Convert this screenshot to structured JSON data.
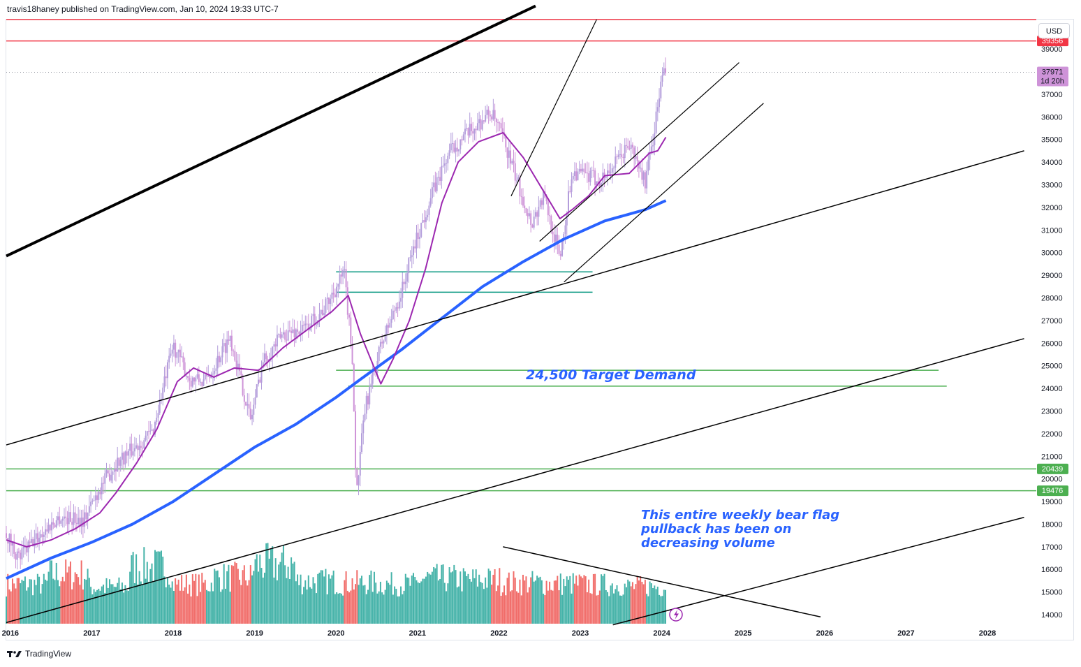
{
  "header": {
    "author_line": "travis18haney published on TradingView.com, Jan 10, 2024 19:33 UTC-7"
  },
  "footer": {
    "brand": "TradingView",
    "logo_icon": "tradingview-logo-icon"
  },
  "price_scale": {
    "currency": "USD",
    "ticks": [
      39000,
      37000,
      36000,
      35000,
      34000,
      33000,
      32000,
      31000,
      30000,
      29000,
      28000,
      27000,
      26000,
      25000,
      24000,
      23000,
      22000,
      21000,
      20000,
      19000,
      18000,
      17000,
      16000,
      15000,
      14000
    ],
    "ylim": [
      13600,
      40300
    ],
    "price_labels": [
      {
        "text": "39356",
        "value": 39356,
        "color": "#f23645"
      },
      {
        "text": "37971",
        "sub": "1d 20h",
        "value": 37971,
        "color": "#ce93d8"
      },
      {
        "text": "20439",
        "value": 20439,
        "color": "#4caf50"
      },
      {
        "text": "19476",
        "value": 19476,
        "color": "#4caf50"
      }
    ]
  },
  "time_scale": {
    "xlim": [
      2015.95,
      2028.6
    ],
    "years": [
      "2016",
      "2017",
      "2018",
      "2019",
      "2020",
      "2021",
      "2022",
      "2023",
      "2024",
      "2025",
      "2026",
      "2027",
      "2028"
    ]
  },
  "annotations": {
    "target": "24,500 Target Demand",
    "volume_note": [
      "This entire weekly bear flag",
      "pullback has been on",
      "decreasing volume"
    ]
  },
  "colors": {
    "up": "#26a69a",
    "down": "#ef5350",
    "ma_fast": "#9c27b0",
    "ma_slow": "#2962ff",
    "resistance": "#f23645",
    "support": "#4caf50",
    "zone": "#089981",
    "trendline": "#000000",
    "annotation": "#2962ff"
  },
  "chart_data": {
    "type": "candlestick",
    "title": "",
    "horizontal_levels": [
      {
        "value": 40300,
        "color": "#f23645"
      },
      {
        "value": 39356,
        "color": "#f23645"
      },
      {
        "value": 20439,
        "color": "#4caf50"
      },
      {
        "value": 19476,
        "color": "#4caf50"
      },
      {
        "value": 24800,
        "color": "#4caf50",
        "from": 2020.0,
        "to": 2027.4
      },
      {
        "value": 24100,
        "color": "#4caf50",
        "from": 2020.15,
        "to": 2027.5
      },
      {
        "value": 29150,
        "color": "#089981",
        "from": 2020.0,
        "to": 2023.15
      },
      {
        "value": 28250,
        "color": "#089981",
        "from": 2020.0,
        "to": 2023.15
      }
    ],
    "trendlines": [
      {
        "from": [
          2015.95,
          29850
        ],
        "to": [
          2022.45,
          40900
        ],
        "width": 4
      },
      {
        "from": [
          2015.95,
          21500
        ],
        "to": [
          2028.45,
          34500
        ],
        "width": 1.5
      },
      {
        "from": [
          2015.95,
          13650
        ],
        "to": [
          2028.45,
          26200
        ],
        "width": 1.5
      },
      {
        "from": [
          2023.4,
          13550
        ],
        "to": [
          2028.45,
          18300
        ],
        "width": 1.5
      },
      {
        "from": [
          2022.15,
          32500
        ],
        "to": [
          2023.2,
          40300
        ],
        "width": 1.2
      },
      {
        "from": [
          2022.5,
          30500
        ],
        "to": [
          2024.95,
          38400
        ],
        "width": 1.2
      },
      {
        "from": [
          2022.8,
          28700
        ],
        "to": [
          2025.25,
          36600
        ],
        "width": 1.2
      },
      {
        "from": [
          2022.05,
          17000
        ],
        "to": [
          2025.95,
          13900
        ],
        "width": 1.5
      }
    ],
    "ma_fast": [
      [
        2015.95,
        17300
      ],
      [
        2016.2,
        17000
      ],
      [
        2016.5,
        17300
      ],
      [
        2016.8,
        17800
      ],
      [
        2017.1,
        18500
      ],
      [
        2017.3,
        19400
      ],
      [
        2017.55,
        20700
      ],
      [
        2017.8,
        22200
      ],
      [
        2018.05,
        24300
      ],
      [
        2018.25,
        24900
      ],
      [
        2018.5,
        24500
      ],
      [
        2018.75,
        24900
      ],
      [
        2019.05,
        24800
      ],
      [
        2019.35,
        25800
      ],
      [
        2019.65,
        26600
      ],
      [
        2019.95,
        27400
      ],
      [
        2020.15,
        28100
      ],
      [
        2020.3,
        26400
      ],
      [
        2020.55,
        24200
      ],
      [
        2020.7,
        25300
      ],
      [
        2020.9,
        27000
      ],
      [
        2021.1,
        29300
      ],
      [
        2021.3,
        32200
      ],
      [
        2021.5,
        34000
      ],
      [
        2021.75,
        34900
      ],
      [
        2022.05,
        35300
      ],
      [
        2022.3,
        34200
      ],
      [
        2022.55,
        32700
      ],
      [
        2022.75,
        31500
      ],
      [
        2022.9,
        31900
      ],
      [
        2023.1,
        32500
      ],
      [
        2023.3,
        33400
      ],
      [
        2023.6,
        33500
      ],
      [
        2023.85,
        34400
      ],
      [
        2023.95,
        34500
      ],
      [
        2024.05,
        35100
      ]
    ],
    "ma_slow": [
      [
        2015.95,
        15600
      ],
      [
        2016.5,
        16500
      ],
      [
        2017.0,
        17200
      ],
      [
        2017.5,
        18000
      ],
      [
        2018.0,
        19000
      ],
      [
        2018.5,
        20200
      ],
      [
        2019.0,
        21400
      ],
      [
        2019.5,
        22400
      ],
      [
        2020.0,
        23600
      ],
      [
        2020.3,
        24400
      ],
      [
        2020.8,
        25700
      ],
      [
        2021.3,
        27100
      ],
      [
        2021.8,
        28500
      ],
      [
        2022.3,
        29600
      ],
      [
        2022.8,
        30600
      ],
      [
        2023.3,
        31400
      ],
      [
        2023.8,
        31900
      ],
      [
        2024.05,
        32300
      ]
    ],
    "price_path": [
      [
        2015.95,
        17600
      ],
      [
        2016.1,
        16500
      ],
      [
        2016.3,
        17300
      ],
      [
        2016.6,
        18300
      ],
      [
        2016.9,
        18200
      ],
      [
        2017.1,
        19600
      ],
      [
        2017.3,
        20700
      ],
      [
        2017.5,
        21300
      ],
      [
        2017.75,
        22100
      ],
      [
        2018.0,
        25900
      ],
      [
        2018.2,
        24400
      ],
      [
        2018.4,
        24300
      ],
      [
        2018.7,
        26300
      ],
      [
        2018.95,
        22600
      ],
      [
        2019.1,
        25200
      ],
      [
        2019.35,
        26400
      ],
      [
        2019.6,
        26600
      ],
      [
        2019.85,
        27500
      ],
      [
        2020.1,
        29100
      ],
      [
        2020.2,
        25400
      ],
      [
        2020.25,
        19200
      ],
      [
        2020.35,
        23000
      ],
      [
        2020.55,
        25900
      ],
      [
        2020.8,
        28200
      ],
      [
        2020.95,
        30200
      ],
      [
        2021.2,
        32800
      ],
      [
        2021.4,
        34500
      ],
      [
        2021.6,
        35200
      ],
      [
        2021.9,
        36200
      ],
      [
        2022.05,
        35100
      ],
      [
        2022.2,
        33400
      ],
      [
        2022.4,
        31300
      ],
      [
        2022.55,
        32500
      ],
      [
        2022.75,
        29800
      ],
      [
        2022.9,
        33600
      ],
      [
        2023.05,
        33400
      ],
      [
        2023.25,
        33200
      ],
      [
        2023.45,
        34000
      ],
      [
        2023.6,
        34800
      ],
      [
        2023.8,
        33100
      ],
      [
        2023.9,
        35200
      ],
      [
        2024.0,
        37700
      ],
      [
        2024.05,
        37971
      ]
    ],
    "volume_rel": [
      0.3,
      0.65,
      0.2,
      0.9,
      0.3,
      0.55,
      1.0,
      0.4,
      0.35,
      0.3,
      0.5,
      0.45,
      0.35,
      0.32,
      0.28,
      0.22
    ]
  }
}
